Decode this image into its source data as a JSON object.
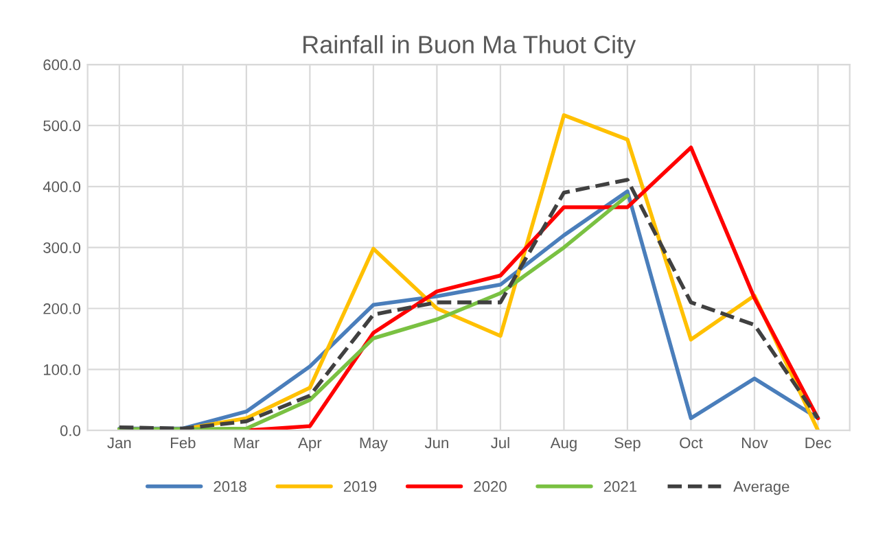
{
  "chart_data": {
    "type": "line",
    "title": "Rainfall in Buon Ma Thuot City",
    "categories": [
      "Jan",
      "Feb",
      "Mar",
      "Apr",
      "May",
      "Jun",
      "Jul",
      "Aug",
      "Sep",
      "Oct",
      "Nov",
      "Dec"
    ],
    "series": [
      {
        "name": "2018",
        "color": "#4a7ebb",
        "values": [
          3,
          3,
          31,
          105,
          206,
          220,
          239,
          320,
          392,
          20,
          85,
          20
        ]
      },
      {
        "name": "2019",
        "color": "#ffc000",
        "values": [
          2,
          2,
          20,
          70,
          298,
          200,
          155,
          517,
          477,
          149,
          221,
          0
        ]
      },
      {
        "name": "2020",
        "color": "#ff0000",
        "values": [
          0,
          0,
          0,
          7,
          160,
          228,
          254,
          366,
          366,
          464,
          217,
          20
        ]
      },
      {
        "name": "2021",
        "color": "#7ac142",
        "values": [
          2,
          2,
          3,
          50,
          151,
          182,
          225,
          300,
          385,
          null,
          null,
          null
        ]
      },
      {
        "name": "Average",
        "color": "#404040",
        "line_style": "dashed",
        "values": [
          5,
          3,
          15,
          57,
          190,
          210,
          210,
          390,
          411,
          210,
          173,
          20
        ]
      }
    ],
    "ylim": [
      0,
      600
    ],
    "yticks": [
      {
        "value": 0,
        "label": "0.0"
      },
      {
        "value": 100,
        "label": "100.0"
      },
      {
        "value": 200,
        "label": "200.0"
      },
      {
        "value": 300,
        "label": "300.0"
      },
      {
        "value": 400,
        "label": "400.0"
      },
      {
        "value": 500,
        "label": "500.0"
      },
      {
        "value": 600,
        "label": "600.0"
      }
    ],
    "grid": true,
    "legend": "bottom",
    "line_style": "solid"
  }
}
